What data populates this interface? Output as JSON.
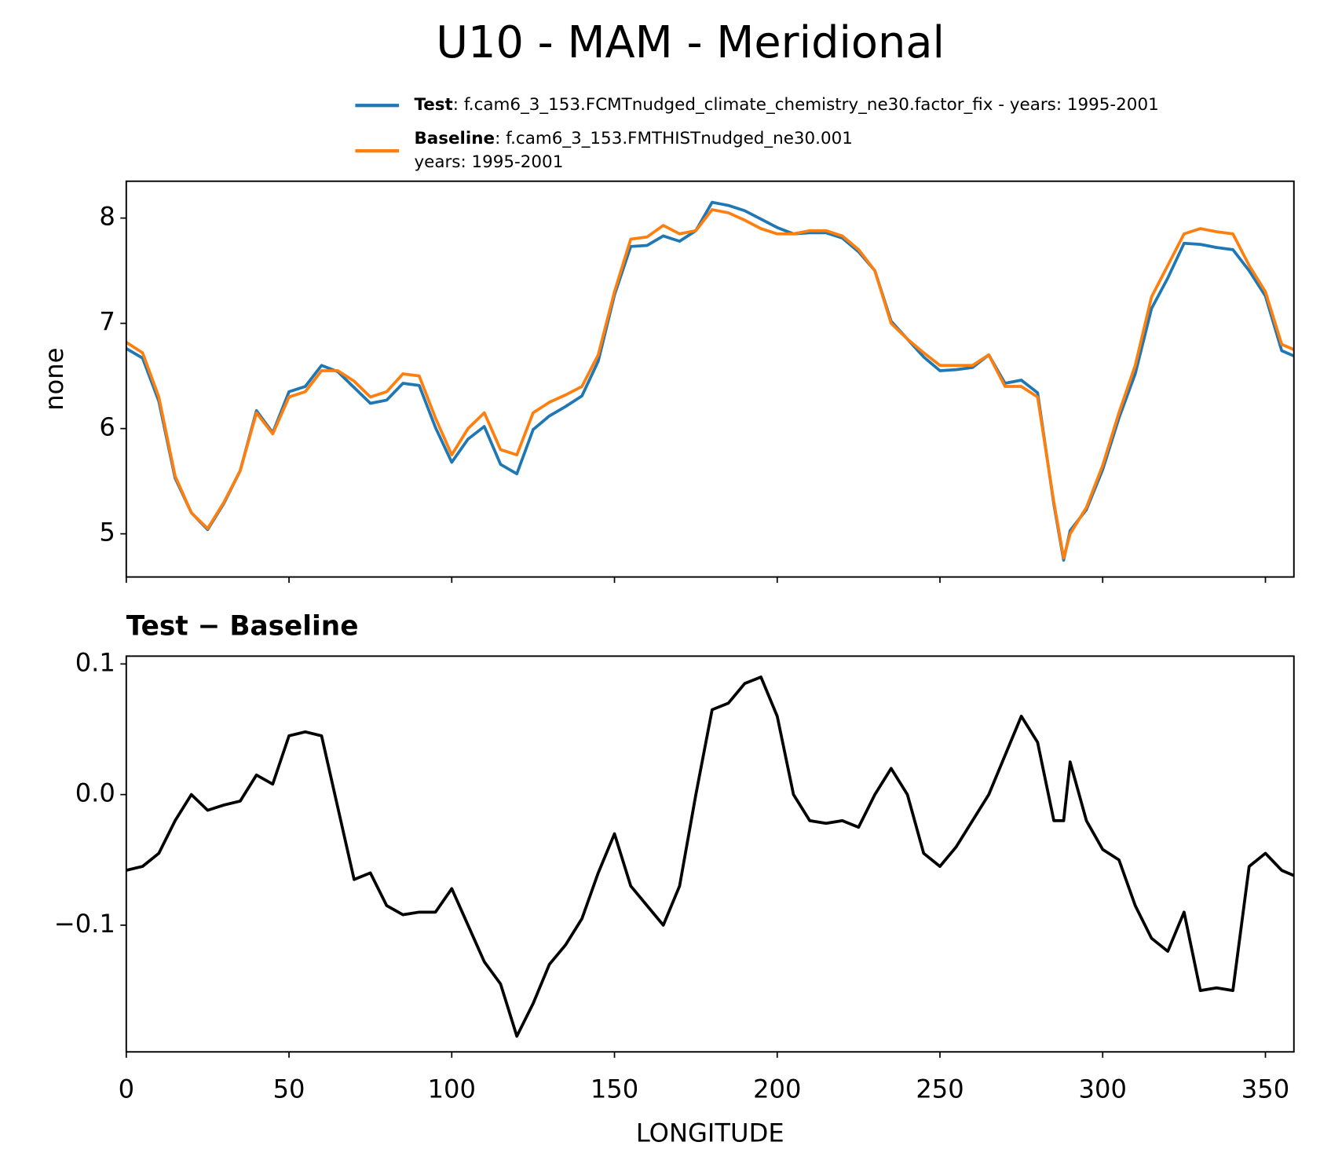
{
  "title": "U10 - MAM - Meridional",
  "chart_data": [
    {
      "type": "line",
      "ylabel": "none",
      "x": [
        0,
        5,
        10,
        15,
        20,
        25,
        30,
        35,
        40,
        45,
        50,
        55,
        60,
        65,
        70,
        75,
        80,
        85,
        90,
        95,
        100,
        105,
        110,
        115,
        120,
        125,
        130,
        135,
        140,
        145,
        150,
        155,
        160,
        165,
        170,
        175,
        180,
        185,
        190,
        195,
        200,
        205,
        210,
        215,
        220,
        225,
        230,
        235,
        240,
        245,
        250,
        255,
        260,
        265,
        270,
        275,
        280,
        285,
        288,
        290,
        295,
        300,
        305,
        310,
        315,
        320,
        325,
        330,
        335,
        340,
        345,
        350,
        355,
        358.75
      ],
      "series": [
        {
          "name": "Test",
          "description": [
            ": f.cam6_3_153.FCMTnudged_climate_chemistry_ne30.factor_fix - years: 1995-2001"
          ],
          "color": "#1f77b4",
          "values": [
            6.76,
            6.67,
            6.26,
            5.53,
            5.2,
            5.04,
            5.29,
            5.6,
            6.17,
            5.96,
            6.35,
            6.4,
            6.6,
            6.54,
            6.39,
            6.24,
            6.27,
            6.43,
            6.41,
            6.01,
            5.68,
            5.9,
            6.02,
            5.66,
            5.57,
            5.99,
            6.12,
            6.21,
            6.31,
            6.64,
            7.27,
            7.73,
            7.74,
            7.83,
            7.78,
            7.88,
            8.15,
            8.12,
            8.07,
            7.99,
            7.91,
            7.85,
            7.86,
            7.86,
            7.81,
            7.68,
            7.5,
            7.02,
            6.85,
            6.68,
            6.55,
            6.56,
            6.58,
            6.7,
            6.43,
            6.46,
            6.34,
            5.28,
            4.75,
            5.03,
            5.23,
            5.61,
            6.1,
            6.52,
            7.14,
            7.43,
            7.76,
            7.75,
            7.72,
            7.7,
            7.5,
            7.26,
            6.74,
            6.69
          ]
        },
        {
          "name": "Baseline",
          "description": [
            ": f.cam6_3_153.FMTHISTnudged_ne30.001",
            "years: 1995-2001"
          ],
          "color": "#ff7f0e",
          "values": [
            6.82,
            6.72,
            6.3,
            5.55,
            5.2,
            5.05,
            5.3,
            5.6,
            6.15,
            5.95,
            6.3,
            6.35,
            6.55,
            6.55,
            6.45,
            6.3,
            6.35,
            6.52,
            6.5,
            6.1,
            5.75,
            6.0,
            6.15,
            5.8,
            5.75,
            6.15,
            6.25,
            6.32,
            6.4,
            6.7,
            7.3,
            7.8,
            7.82,
            7.93,
            7.85,
            7.88,
            8.08,
            8.05,
            7.98,
            7.9,
            7.85,
            7.85,
            7.88,
            7.88,
            7.83,
            7.7,
            7.5,
            7.0,
            6.85,
            6.72,
            6.6,
            6.6,
            6.6,
            6.7,
            6.4,
            6.4,
            6.3,
            5.3,
            4.77,
            5.0,
            5.25,
            5.65,
            6.15,
            6.6,
            7.25,
            7.55,
            7.85,
            7.9,
            7.87,
            7.85,
            7.55,
            7.3,
            6.8,
            6.75
          ]
        }
      ],
      "xlim": [
        0,
        358.75
      ],
      "xticks": [
        0,
        50,
        100,
        150,
        200,
        250,
        300,
        350
      ],
      "ylim": [
        4.59,
        8.35
      ],
      "yticks": [
        5,
        6,
        7,
        8
      ]
    },
    {
      "type": "line",
      "title": "Test − Baseline",
      "xlabel": "LONGITUDE",
      "x": [
        0,
        5,
        10,
        15,
        20,
        25,
        30,
        35,
        40,
        45,
        50,
        55,
        60,
        65,
        70,
        75,
        80,
        85,
        90,
        95,
        100,
        105,
        110,
        115,
        120,
        125,
        130,
        135,
        140,
        145,
        150,
        155,
        160,
        165,
        170,
        175,
        180,
        185,
        190,
        195,
        200,
        205,
        210,
        215,
        220,
        225,
        230,
        235,
        240,
        245,
        250,
        255,
        260,
        265,
        270,
        275,
        280,
        285,
        288,
        290,
        295,
        300,
        305,
        310,
        315,
        320,
        325,
        330,
        335,
        340,
        345,
        350,
        355,
        358.75
      ],
      "series": [
        {
          "color": "#000000",
          "values": [
            -0.058,
            -0.055,
            -0.045,
            -0.02,
            0.0,
            -0.012,
            -0.008,
            -0.005,
            0.015,
            0.008,
            0.045,
            0.048,
            0.045,
            -0.01,
            -0.065,
            -0.06,
            -0.085,
            -0.092,
            -0.09,
            -0.09,
            -0.072,
            -0.1,
            -0.128,
            -0.145,
            -0.185,
            -0.16,
            -0.13,
            -0.115,
            -0.095,
            -0.06,
            -0.03,
            -0.07,
            -0.085,
            -0.1,
            -0.07,
            0.0,
            0.065,
            0.07,
            0.085,
            0.09,
            0.06,
            0.0,
            -0.02,
            -0.022,
            -0.02,
            -0.025,
            0.0,
            0.02,
            0.0,
            -0.045,
            -0.055,
            -0.04,
            -0.02,
            0.0,
            0.03,
            0.06,
            0.04,
            -0.02,
            -0.02,
            0.025,
            -0.02,
            -0.042,
            -0.05,
            -0.085,
            -0.11,
            -0.12,
            -0.09,
            -0.15,
            -0.148,
            -0.15,
            -0.055,
            -0.045,
            -0.058,
            -0.062
          ]
        }
      ],
      "xlim": [
        0,
        358.75
      ],
      "xticks": [
        0,
        50,
        100,
        150,
        200,
        250,
        300,
        350
      ],
      "ylim": [
        -0.197,
        0.106
      ],
      "yticks": [
        {
          "value": -0.1,
          "label": "−0.1"
        },
        {
          "value": 0,
          "label": "0.0"
        },
        0.1
      ]
    }
  ]
}
